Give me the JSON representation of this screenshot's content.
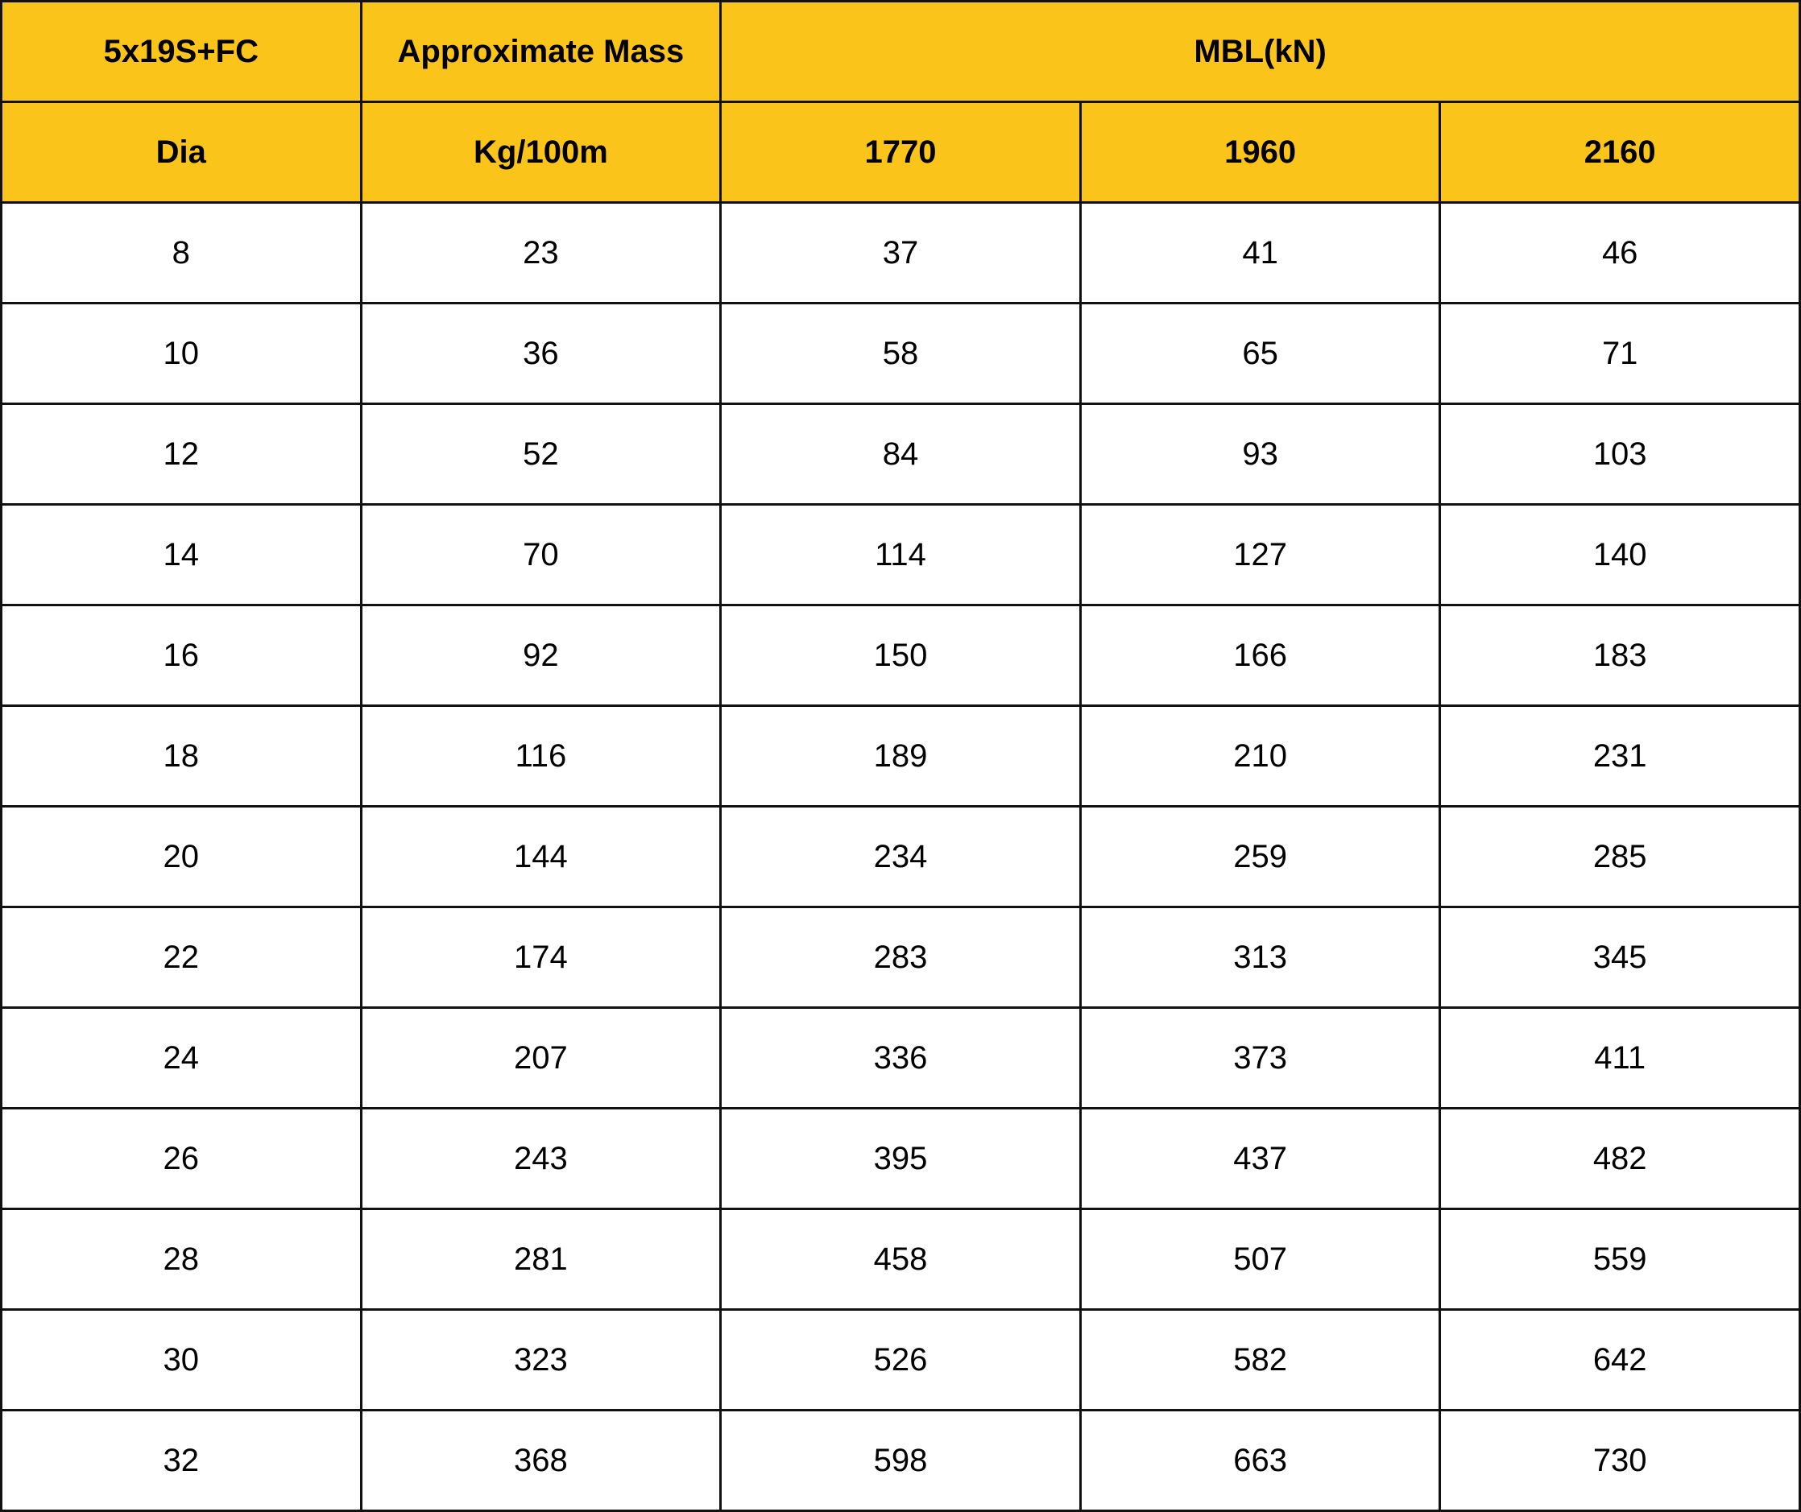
{
  "header": {
    "row1": {
      "type": "5x19S+FC",
      "mass": "Approximate Mass",
      "mbl": "MBL(kN)"
    },
    "row2": {
      "dia": "Dia",
      "mass_unit": "Kg/100m",
      "grades": [
        "1770",
        "1960",
        "2160"
      ]
    }
  },
  "colors": {
    "header_bg": "#FBC41A",
    "border": "#111111"
  },
  "rows": [
    [
      "8",
      "23",
      "37",
      "41",
      "46"
    ],
    [
      "10",
      "36",
      "58",
      "65",
      "71"
    ],
    [
      "12",
      "52",
      "84",
      "93",
      "103"
    ],
    [
      "14",
      "70",
      "114",
      "127",
      "140"
    ],
    [
      "16",
      "92",
      "150",
      "166",
      "183"
    ],
    [
      "18",
      "116",
      "189",
      "210",
      "231"
    ],
    [
      "20",
      "144",
      "234",
      "259",
      "285"
    ],
    [
      "22",
      "174",
      "283",
      "313",
      "345"
    ],
    [
      "24",
      "207",
      "336",
      "373",
      "411"
    ],
    [
      "26",
      "243",
      "395",
      "437",
      "482"
    ],
    [
      "28",
      "281",
      "458",
      "507",
      "559"
    ],
    [
      "30",
      "323",
      "526",
      "582",
      "642"
    ],
    [
      "32",
      "368",
      "598",
      "663",
      "730"
    ]
  ]
}
